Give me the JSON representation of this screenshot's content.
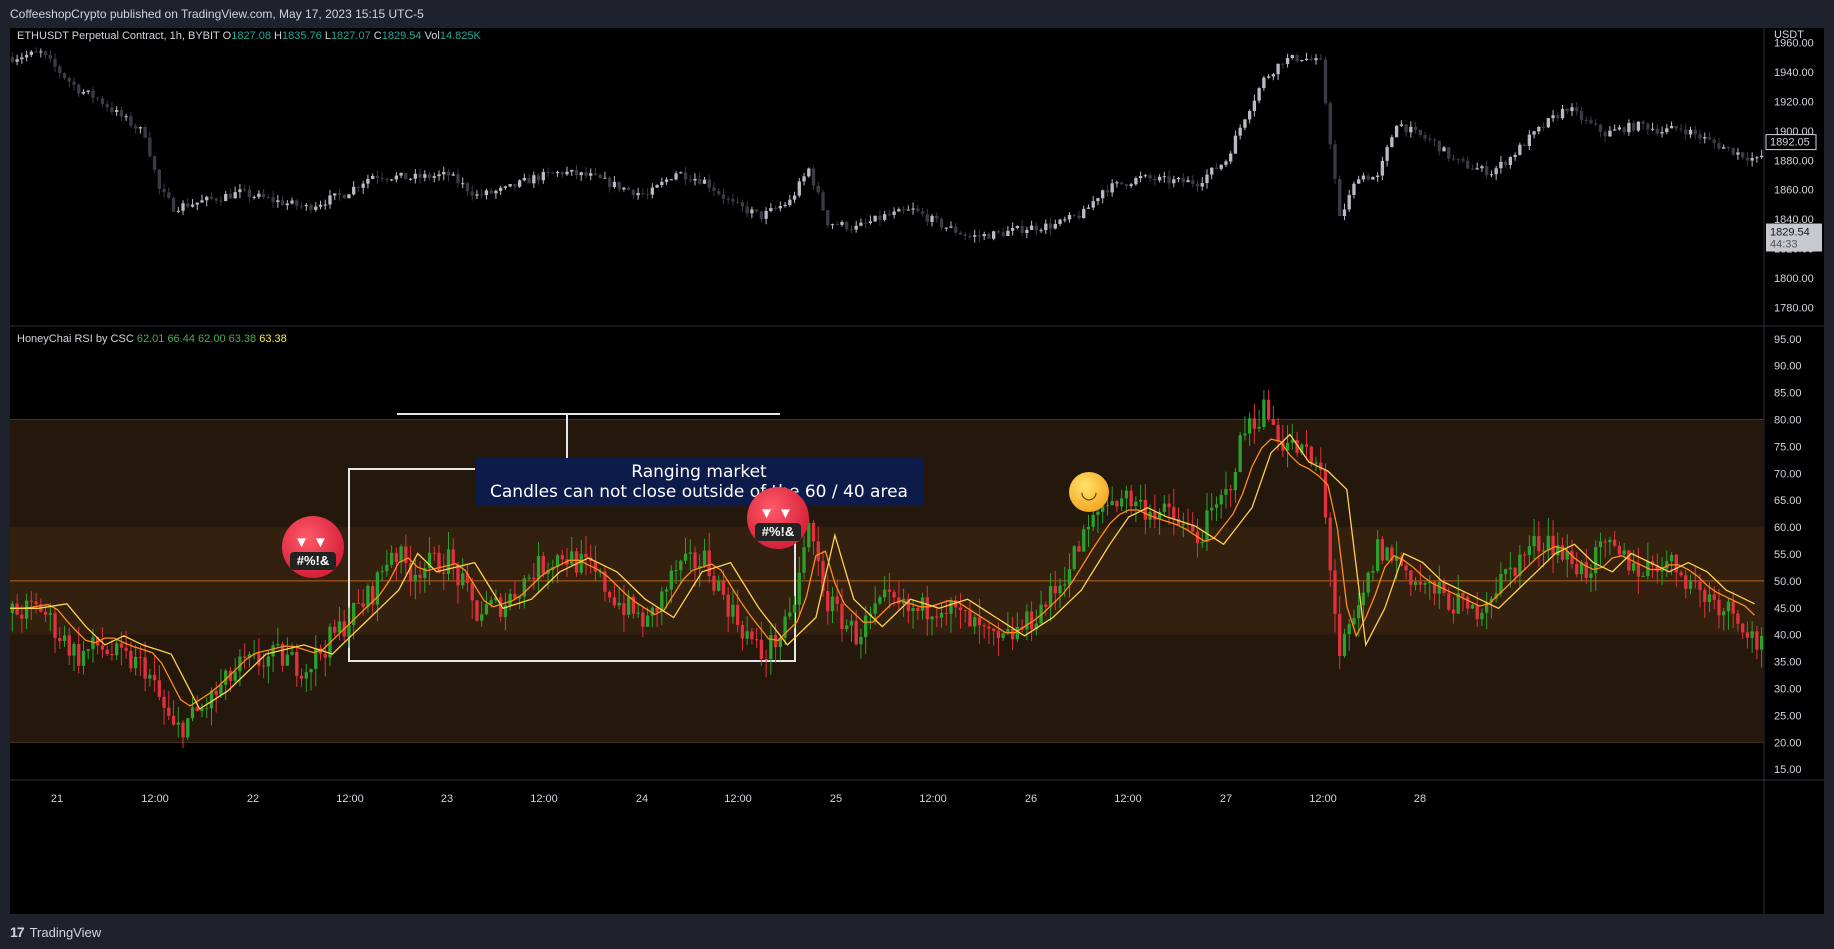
{
  "header": {
    "published_by": "CoffeeshopCrypto published on TradingView.com, May 17, 2023 15:15 UTC-5"
  },
  "main_pane": {
    "symbol": "ETHUSDT Perpetual Contract, 1h, BYBIT",
    "o_label": "O",
    "o": "1827.08",
    "h_label": "H",
    "h": "1835.76",
    "l_label": "L",
    "l": "1827.07",
    "c_label": "C",
    "c": "1829.54",
    "vol_label": "Vol",
    "vol": "14.825K",
    "currency": "USDT",
    "current_price": "1829.54",
    "countdown": "44:33",
    "marker_price": "1892.05"
  },
  "rsi_pane": {
    "name": "HoneyChai RSI by CSC",
    "values": [
      "62.01",
      "66.44",
      "62.00",
      "63.38",
      "63.38"
    ]
  },
  "annotation": {
    "line1": "Ranging market",
    "line2": "Candles can not close outside of the 60 / 40 area"
  },
  "emojis": {
    "curse_text": "#%!&"
  },
  "footer": {
    "brand": "TradingView"
  },
  "colors": {
    "up": "#26a69a",
    "down": "#c8c8d0",
    "rsi_up": "#2ca02c",
    "rsi_down": "#e0313d",
    "orange_line": "#ff8c1a",
    "yellow_line": "#ffd24d",
    "band": "#2a1b10"
  },
  "chart_data": [
    {
      "type": "candlestick",
      "title": "ETHUSDT Perpetual Contract, 1h, BYBIT",
      "ylabel": "USDT",
      "ylim": [
        1768,
        1970
      ],
      "y_ticks": [
        1780,
        1800,
        1820,
        1840,
        1860,
        1880,
        1900,
        1920,
        1940,
        1960
      ],
      "y_tick_labels": [
        "1780.00",
        "1800.00",
        "1820.00",
        "1840.00",
        "1860.00",
        "1880.00",
        "1900.00",
        "1920.00",
        "1940.00",
        "1960.00"
      ],
      "x_tick_labels": [
        "21",
        "12:00",
        "22",
        "12:00",
        "23",
        "12:00",
        "24",
        "12:00",
        "25",
        "12:00",
        "26",
        "12:00",
        "27",
        "12:00",
        "28"
      ],
      "close_path": [
        [
          0,
          1950
        ],
        [
          6,
          1953
        ],
        [
          10,
          1940
        ],
        [
          14,
          1928
        ],
        [
          18,
          1922
        ],
        [
          22,
          1912
        ],
        [
          28,
          1898
        ],
        [
          31,
          1860
        ],
        [
          34,
          1848
        ],
        [
          40,
          1852
        ],
        [
          48,
          1858
        ],
        [
          56,
          1852
        ],
        [
          62,
          1848
        ],
        [
          70,
          1857
        ],
        [
          76,
          1870
        ],
        [
          84,
          1868
        ],
        [
          92,
          1870
        ],
        [
          98,
          1856
        ],
        [
          104,
          1860
        ],
        [
          110,
          1868
        ],
        [
          116,
          1872
        ],
        [
          122,
          1869
        ],
        [
          128,
          1862
        ],
        [
          134,
          1856
        ],
        [
          140,
          1872
        ],
        [
          146,
          1866
        ],
        [
          152,
          1850
        ],
        [
          158,
          1842
        ],
        [
          164,
          1852
        ],
        [
          168,
          1874
        ],
        [
          172,
          1838
        ],
        [
          178,
          1834
        ],
        [
          184,
          1842
        ],
        [
          190,
          1846
        ],
        [
          196,
          1836
        ],
        [
          202,
          1828
        ],
        [
          208,
          1830
        ],
        [
          214,
          1834
        ],
        [
          220,
          1836
        ],
        [
          226,
          1844
        ],
        [
          230,
          1860
        ],
        [
          234,
          1864
        ],
        [
          238,
          1868
        ],
        [
          244,
          1866
        ],
        [
          250,
          1865
        ],
        [
          256,
          1880
        ],
        [
          260,
          1910
        ],
        [
          264,
          1935
        ],
        [
          268,
          1948
        ],
        [
          272,
          1950
        ],
        [
          276,
          1946
        ],
        [
          280,
          1840
        ],
        [
          284,
          1870
        ],
        [
          288,
          1868
        ],
        [
          292,
          1906
        ],
        [
          296,
          1898
        ],
        [
          300,
          1892
        ],
        [
          304,
          1880
        ],
        [
          308,
          1875
        ],
        [
          312,
          1872
        ],
        [
          316,
          1882
        ],
        [
          320,
          1895
        ],
        [
          324,
          1906
        ],
        [
          328,
          1916
        ],
        [
          332,
          1906
        ],
        [
          336,
          1898
        ],
        [
          340,
          1902
        ],
        [
          344,
          1904
        ],
        [
          348,
          1900
        ],
        [
          352,
          1902
        ],
        [
          356,
          1896
        ],
        [
          360,
          1890
        ],
        [
          364,
          1885
        ],
        [
          368,
          1880
        ],
        [
          370,
          1886
        ]
      ]
    },
    {
      "type": "candlestick",
      "title": "HoneyChai RSI by CSC",
      "ylim": [
        13,
        97
      ],
      "y_ticks": [
        15,
        20,
        25,
        30,
        35,
        40,
        45,
        50,
        55,
        60,
        65,
        70,
        75,
        80,
        85,
        90,
        95
      ],
      "y_tick_labels": [
        "15.00",
        "20.00",
        "25.00",
        "30.00",
        "35.00",
        "40.00",
        "45.00",
        "50.00",
        "55.00",
        "60.00",
        "65.00",
        "70.00",
        "75.00",
        "80.00",
        "85.00",
        "90.00",
        "95.00"
      ],
      "bands": {
        "outer": [
          20,
          80
        ],
        "inner": [
          40,
          60
        ],
        "mid": 50
      },
      "series": [
        {
          "name": "HoneyChai RSI by CSC",
          "values": [
            "62.01",
            "66.44",
            "62.00",
            "63.38",
            "63.38"
          ]
        }
      ],
      "close_path": [
        [
          0,
          44
        ],
        [
          6,
          45
        ],
        [
          10,
          40
        ],
        [
          14,
          36
        ],
        [
          18,
          38
        ],
        [
          22,
          36
        ],
        [
          28,
          34
        ],
        [
          31,
          28
        ],
        [
          34,
          22
        ],
        [
          40,
          26
        ],
        [
          48,
          34
        ],
        [
          56,
          36
        ],
        [
          62,
          34
        ],
        [
          70,
          42
        ],
        [
          76,
          48
        ],
        [
          80,
          56
        ],
        [
          84,
          52
        ],
        [
          92,
          54
        ],
        [
          98,
          44
        ],
        [
          104,
          46
        ],
        [
          110,
          52
        ],
        [
          116,
          55
        ],
        [
          122,
          52
        ],
        [
          128,
          46
        ],
        [
          134,
          42
        ],
        [
          140,
          52
        ],
        [
          146,
          54
        ],
        [
          152,
          44
        ],
        [
          158,
          36
        ],
        [
          164,
          42
        ],
        [
          168,
          60
        ],
        [
          172,
          46
        ],
        [
          178,
          40
        ],
        [
          184,
          46
        ],
        [
          190,
          44
        ],
        [
          196,
          46
        ],
        [
          202,
          42
        ],
        [
          208,
          38
        ],
        [
          214,
          42
        ],
        [
          220,
          48
        ],
        [
          226,
          58
        ],
        [
          230,
          64
        ],
        [
          234,
          66
        ],
        [
          238,
          64
        ],
        [
          244,
          62
        ],
        [
          250,
          58
        ],
        [
          256,
          66
        ],
        [
          260,
          78
        ],
        [
          264,
          82
        ],
        [
          268,
          76
        ],
        [
          272,
          74
        ],
        [
          276,
          70
        ],
        [
          280,
          36
        ],
        [
          284,
          44
        ],
        [
          288,
          56
        ],
        [
          292,
          54
        ],
        [
          296,
          50
        ],
        [
          300,
          48
        ],
        [
          304,
          46
        ],
        [
          308,
          44
        ],
        [
          312,
          48
        ],
        [
          316,
          52
        ],
        [
          320,
          56
        ],
        [
          324,
          58
        ],
        [
          328,
          54
        ],
        [
          332,
          52
        ],
        [
          336,
          56
        ],
        [
          340,
          54
        ],
        [
          344,
          52
        ],
        [
          348,
          54
        ],
        [
          352,
          52
        ],
        [
          356,
          48
        ],
        [
          360,
          46
        ],
        [
          364,
          44
        ],
        [
          368,
          38
        ],
        [
          370,
          44
        ]
      ]
    }
  ]
}
